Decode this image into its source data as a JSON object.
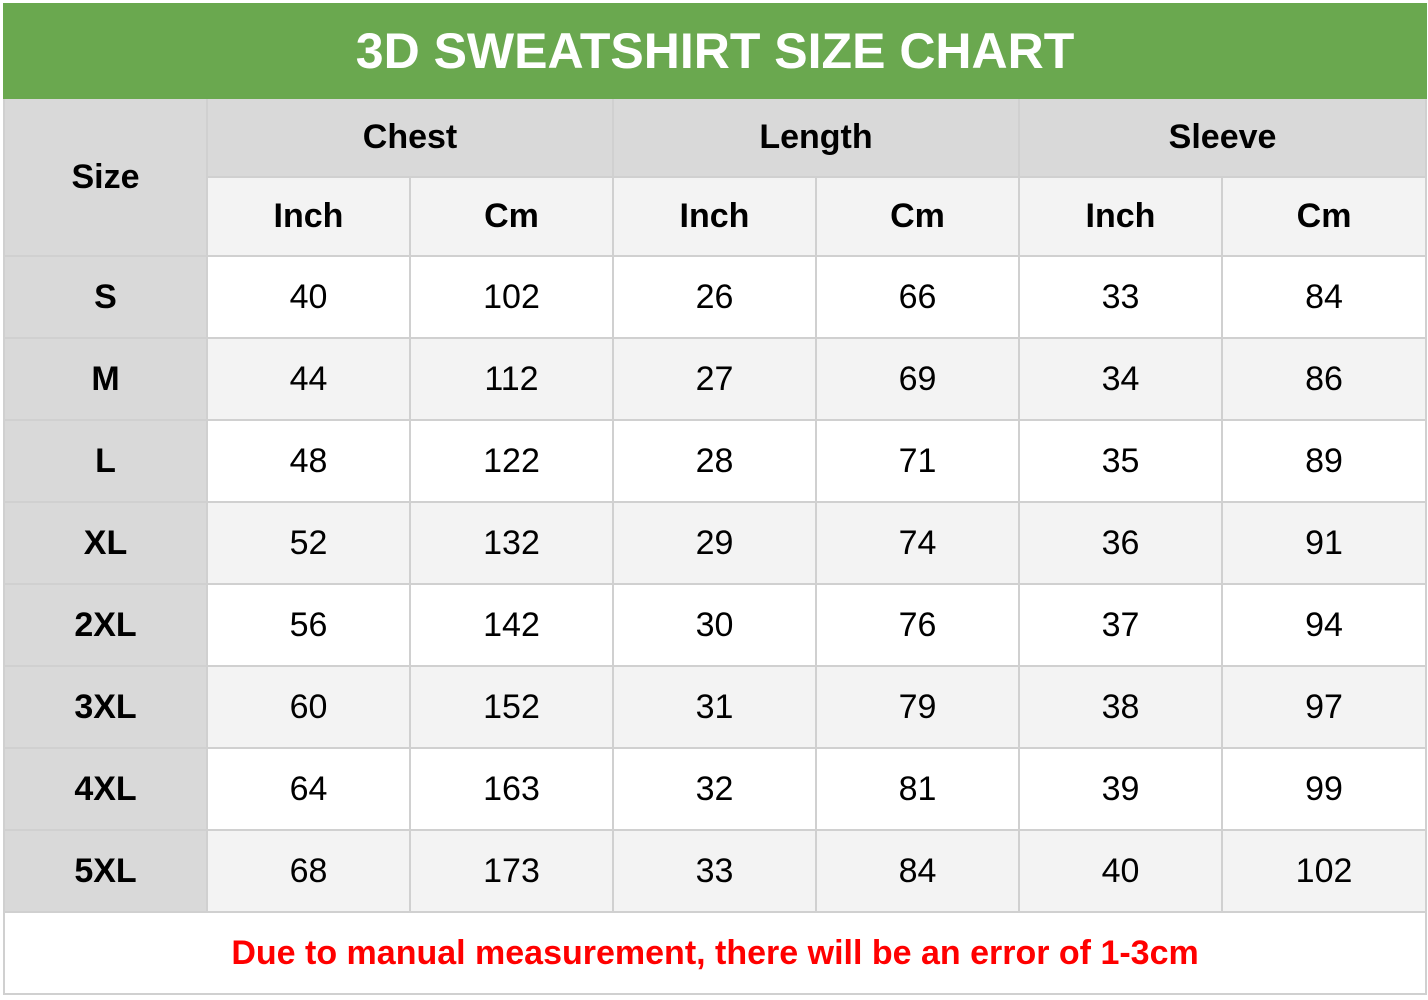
{
  "title": "3D SWEATSHIRT SIZE CHART",
  "headers": {
    "size": "Size",
    "groups": [
      "Chest",
      "Length",
      "Sleeve"
    ],
    "units": [
      "Inch",
      "Cm",
      "Inch",
      "Cm",
      "Inch",
      "Cm"
    ]
  },
  "rows": [
    {
      "size": "S",
      "values": [
        "40",
        "102",
        "26",
        "66",
        "33",
        "84"
      ]
    },
    {
      "size": "M",
      "values": [
        "44",
        "112",
        "27",
        "69",
        "34",
        "86"
      ]
    },
    {
      "size": "L",
      "values": [
        "48",
        "122",
        "28",
        "71",
        "35",
        "89"
      ]
    },
    {
      "size": "XL",
      "values": [
        "52",
        "132",
        "29",
        "74",
        "36",
        "91"
      ]
    },
    {
      "size": "2XL",
      "values": [
        "56",
        "142",
        "30",
        "76",
        "37",
        "94"
      ]
    },
    {
      "size": "3XL",
      "values": [
        "60",
        "152",
        "31",
        "79",
        "38",
        "97"
      ]
    },
    {
      "size": "4XL",
      "values": [
        "64",
        "163",
        "32",
        "81",
        "39",
        "99"
      ]
    },
    {
      "size": "5XL",
      "values": [
        "68",
        "173",
        "33",
        "84",
        "40",
        "102"
      ]
    }
  ],
  "note": "Due to manual measurement, there will be an error of 1-3cm",
  "colors": {
    "title_bg": "#6aa84f",
    "note_text": "#ff0000",
    "header_bg": "#d9d9d9",
    "band": "#f3f3f3"
  }
}
